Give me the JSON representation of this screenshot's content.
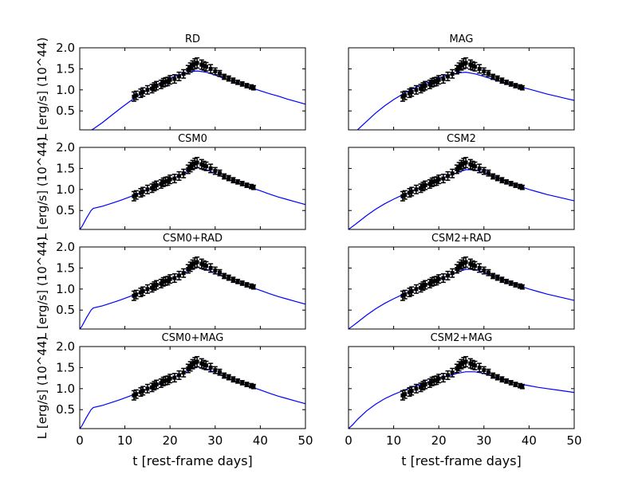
{
  "chart_data": {
    "type": "line",
    "layout": "4x2 grid",
    "xlabel": "t [rest-frame days]",
    "ylabel": "L [erg/s] (10^44)",
    "xlim": [
      0,
      50
    ],
    "ylim": [
      0.05,
      2.0
    ],
    "xticks": [
      0,
      10,
      20,
      30,
      40,
      50
    ],
    "yticks": [
      0.5,
      1.0,
      1.5,
      2.0
    ],
    "xtick_labels": [
      "0",
      "10",
      "20",
      "30",
      "40",
      "50"
    ],
    "ytick_labels": [
      "0.5",
      "1.0",
      "1.5",
      "2.0"
    ],
    "observations": {
      "name": "data",
      "color": "#000000",
      "x": [
        12.0,
        12.5,
        13.5,
        14.0,
        15.0,
        16.0,
        16.5,
        17.0,
        18.0,
        18.5,
        19.0,
        19.5,
        20.0,
        21.0,
        22.0,
        23.0,
        24.0,
        24.5,
        25.0,
        25.5,
        26.0,
        27.0,
        27.5,
        28.0,
        29.0,
        30.0,
        31.0,
        32.0,
        33.0,
        34.0,
        35.0,
        36.0,
        37.0,
        38.0,
        38.5
      ],
      "y": [
        0.84,
        0.87,
        0.92,
        0.95,
        1.0,
        1.03,
        1.07,
        1.1,
        1.13,
        1.17,
        1.19,
        1.2,
        1.24,
        1.26,
        1.32,
        1.38,
        1.48,
        1.53,
        1.58,
        1.62,
        1.64,
        1.6,
        1.57,
        1.55,
        1.5,
        1.44,
        1.39,
        1.31,
        1.27,
        1.22,
        1.18,
        1.14,
        1.1,
        1.07,
        1.05
      ],
      "yerr": [
        0.11,
        0.1,
        0.1,
        0.1,
        0.1,
        0.1,
        0.1,
        0.1,
        0.1,
        0.1,
        0.1,
        0.1,
        0.1,
        0.1,
        0.1,
        0.1,
        0.1,
        0.11,
        0.11,
        0.12,
        0.12,
        0.11,
        0.1,
        0.1,
        0.1,
        0.08,
        0.07,
        0.06,
        0.06,
        0.06,
        0.05,
        0.05,
        0.05,
        0.05,
        0.05
      ]
    },
    "panels": [
      {
        "title": "RD",
        "series": [
          {
            "name": "model",
            "color": "#0000ff",
            "x": [
              0,
              2,
              3,
              5,
              7,
              9,
              11,
              13,
              15,
              17,
              19,
              21,
              23,
              25,
              26,
              28,
              30,
              32,
              34,
              36,
              38,
              40,
              42,
              44,
              46,
              48,
              50
            ],
            "y": [
              0.0,
              0.02,
              0.07,
              0.22,
              0.39,
              0.56,
              0.72,
              0.87,
              1.0,
              1.12,
              1.23,
              1.32,
              1.39,
              1.44,
              1.45,
              1.42,
              1.35,
              1.27,
              1.2,
              1.12,
              1.05,
              0.98,
              0.91,
              0.85,
              0.78,
              0.72,
              0.66
            ]
          }
        ]
      },
      {
        "title": "MAG",
        "series": [
          {
            "name": "model",
            "color": "#0000ff",
            "x": [
              0,
              1,
              2,
              4,
              6,
              8,
              10,
              12,
              14,
              16,
              18,
              20,
              22,
              24,
              26,
              28,
              30,
              32,
              34,
              36,
              38,
              40,
              42,
              44,
              46,
              48,
              50
            ],
            "y": [
              0.0,
              0.01,
              0.05,
              0.25,
              0.45,
              0.62,
              0.77,
              0.9,
              1.01,
              1.11,
              1.2,
              1.28,
              1.35,
              1.4,
              1.42,
              1.38,
              1.32,
              1.25,
              1.19,
              1.13,
              1.07,
              1.02,
              0.96,
              0.9,
              0.85,
              0.8,
              0.75
            ]
          }
        ]
      },
      {
        "title": "CSM0",
        "series": [
          {
            "name": "model",
            "color": "#0000ff",
            "x": [
              0,
              0.5,
              1.5,
              2.5,
              3,
              5,
              7,
              9,
              11,
              13,
              15,
              17,
              19,
              21,
              23,
              25,
              26,
              28,
              30,
              32,
              34,
              36,
              38,
              40,
              42,
              44,
              46,
              48,
              50
            ],
            "y": [
              0.05,
              0.12,
              0.32,
              0.5,
              0.55,
              0.6,
              0.67,
              0.74,
              0.82,
              0.9,
              0.99,
              1.08,
              1.18,
              1.28,
              1.38,
              1.48,
              1.52,
              1.47,
              1.38,
              1.28,
              1.2,
              1.12,
              1.04,
              0.97,
              0.89,
              0.82,
              0.76,
              0.7,
              0.64
            ]
          }
        ]
      },
      {
        "title": "CSM2",
        "series": [
          {
            "name": "model",
            "color": "#0000ff",
            "x": [
              0,
              1,
              2,
              4,
              6,
              8,
              10,
              12,
              14,
              16,
              18,
              20,
              22,
              24,
              26,
              28,
              30,
              32,
              34,
              36,
              38,
              40,
              42,
              44,
              46,
              48,
              50
            ],
            "y": [
              0.05,
              0.13,
              0.21,
              0.38,
              0.53,
              0.66,
              0.77,
              0.87,
              0.96,
              1.05,
              1.14,
              1.23,
              1.32,
              1.4,
              1.47,
              1.47,
              1.4,
              1.31,
              1.23,
              1.15,
              1.07,
              1.0,
              0.94,
              0.88,
              0.83,
              0.78,
              0.73
            ]
          }
        ]
      },
      {
        "title": "CSM0+RAD",
        "series": [
          {
            "name": "model",
            "color": "#0000ff",
            "x": [
              0,
              0.5,
              1.5,
              2.5,
              3,
              5,
              7,
              9,
              11,
              13,
              15,
              17,
              19,
              21,
              23,
              25,
              26,
              28,
              30,
              32,
              34,
              36,
              38,
              40,
              42,
              44,
              46,
              48,
              50
            ],
            "y": [
              0.05,
              0.12,
              0.32,
              0.5,
              0.55,
              0.6,
              0.67,
              0.74,
              0.82,
              0.9,
              0.99,
              1.08,
              1.18,
              1.28,
              1.38,
              1.48,
              1.52,
              1.47,
              1.38,
              1.28,
              1.2,
              1.12,
              1.04,
              0.97,
              0.89,
              0.82,
              0.76,
              0.7,
              0.64
            ]
          }
        ]
      },
      {
        "title": "CSM2+RAD",
        "series": [
          {
            "name": "model",
            "color": "#0000ff",
            "x": [
              0,
              1,
              2,
              4,
              6,
              8,
              10,
              12,
              14,
              16,
              18,
              20,
              22,
              24,
              26,
              28,
              30,
              32,
              34,
              36,
              38,
              40,
              42,
              44,
              46,
              48,
              50
            ],
            "y": [
              0.05,
              0.13,
              0.21,
              0.38,
              0.53,
              0.66,
              0.77,
              0.87,
              0.96,
              1.05,
              1.14,
              1.23,
              1.32,
              1.4,
              1.47,
              1.47,
              1.4,
              1.31,
              1.23,
              1.15,
              1.07,
              1.0,
              0.94,
              0.88,
              0.83,
              0.78,
              0.73
            ]
          }
        ]
      },
      {
        "title": "CSM0+MAG",
        "series": [
          {
            "name": "model",
            "color": "#0000ff",
            "x": [
              0,
              0.5,
              1.5,
              2.5,
              3,
              5,
              7,
              9,
              11,
              13,
              15,
              17,
              19,
              21,
              23,
              25,
              26,
              28,
              30,
              32,
              34,
              36,
              38,
              40,
              42,
              44,
              46,
              48,
              50
            ],
            "y": [
              0.05,
              0.12,
              0.32,
              0.5,
              0.55,
              0.6,
              0.67,
              0.74,
              0.82,
              0.9,
              0.99,
              1.08,
              1.18,
              1.28,
              1.38,
              1.48,
              1.52,
              1.47,
              1.38,
              1.28,
              1.2,
              1.12,
              1.04,
              0.97,
              0.89,
              0.82,
              0.76,
              0.7,
              0.64
            ]
          }
        ]
      },
      {
        "title": "CSM2+MAG",
        "series": [
          {
            "name": "model",
            "color": "#0000ff",
            "x": [
              0,
              1,
              2,
              4,
              6,
              8,
              10,
              12,
              14,
              16,
              18,
              20,
              22,
              24,
              26,
              28,
              30,
              32,
              34,
              36,
              38,
              40,
              42,
              44,
              46,
              48,
              50
            ],
            "y": [
              0.05,
              0.15,
              0.27,
              0.47,
              0.63,
              0.76,
              0.86,
              0.95,
              1.03,
              1.1,
              1.17,
              1.24,
              1.3,
              1.36,
              1.4,
              1.4,
              1.36,
              1.29,
              1.22,
              1.16,
              1.11,
              1.07,
              1.03,
              1.0,
              0.97,
              0.94,
              0.91
            ]
          }
        ]
      }
    ]
  }
}
